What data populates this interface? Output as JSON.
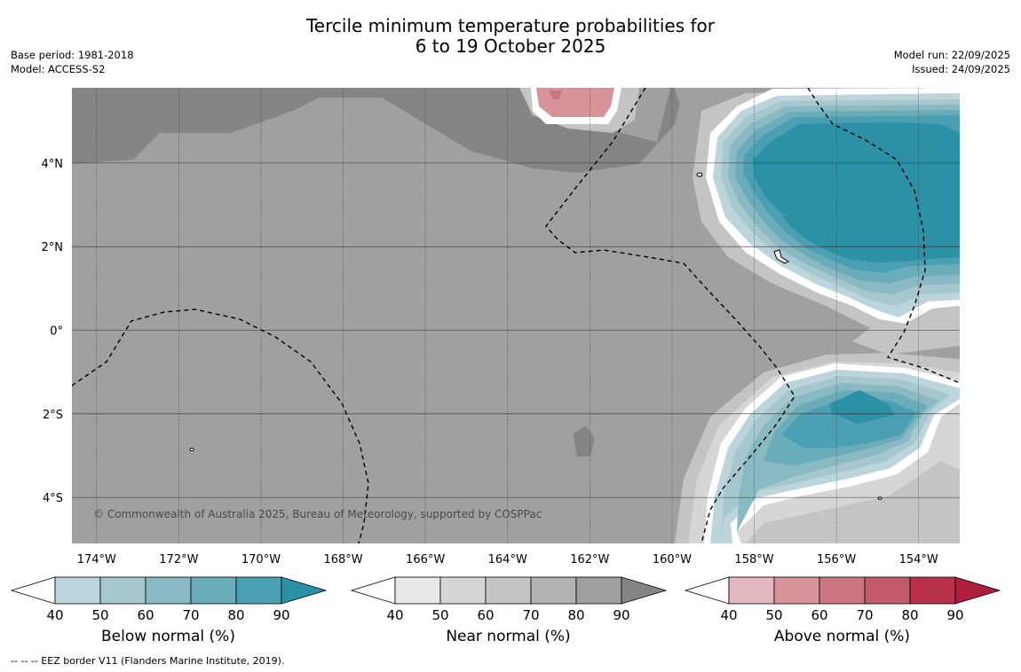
{
  "title": {
    "line1": "Tercile minimum temperature probabilities for",
    "line2": "6 to 19 October 2025"
  },
  "meta": {
    "base_period": "Base period: 1981-2018",
    "model": "Model: ACCESS-S2",
    "model_run": "Model run: 22/09/2025",
    "issued": "Issued: 24/09/2025"
  },
  "map": {
    "lon_range": [
      -174.6,
      -153.0
    ],
    "lat_range": [
      -5.1,
      5.8
    ],
    "lon_ticks": [
      "174°W",
      "172°W",
      "170°W",
      "168°W",
      "166°W",
      "164°W",
      "162°W",
      "160°W",
      "158°W",
      "156°W",
      "154°W"
    ],
    "lat_ticks": [
      "4°N",
      "2°N",
      "0°",
      "2°S",
      "4°S"
    ],
    "copyright": "© Commonwealth of Australia 2025, Bureau of Meteorology, supported by COSPPac"
  },
  "colorbars": [
    {
      "id": "below",
      "label": "Below normal (%)",
      "ticks": [
        "40",
        "50",
        "60",
        "70",
        "80",
        "90"
      ],
      "colors": [
        "#bcd5dc",
        "#a5c7cd",
        "#89b9c2",
        "#6aacba",
        "#4aa0b2",
        "#2c90a6"
      ]
    },
    {
      "id": "near",
      "label": "Near normal (%)",
      "ticks": [
        "40",
        "50",
        "60",
        "70",
        "80",
        "90"
      ],
      "colors": [
        "#e8e8e8",
        "#d6d6d6",
        "#c4c4c4",
        "#b2b2b2",
        "#a0a0a0",
        "#858585"
      ]
    },
    {
      "id": "above",
      "label": "Above normal (%)",
      "ticks": [
        "40",
        "50",
        "60",
        "70",
        "80",
        "90"
      ],
      "colors": [
        "#e3b8bf",
        "#d8939b",
        "#cb757f",
        "#c25a69",
        "#b83149",
        "#ad1f3d"
      ]
    }
  ],
  "footnote": "--  --  -- EEZ border V11 (Flanders Marine Institute, 2019)."
}
